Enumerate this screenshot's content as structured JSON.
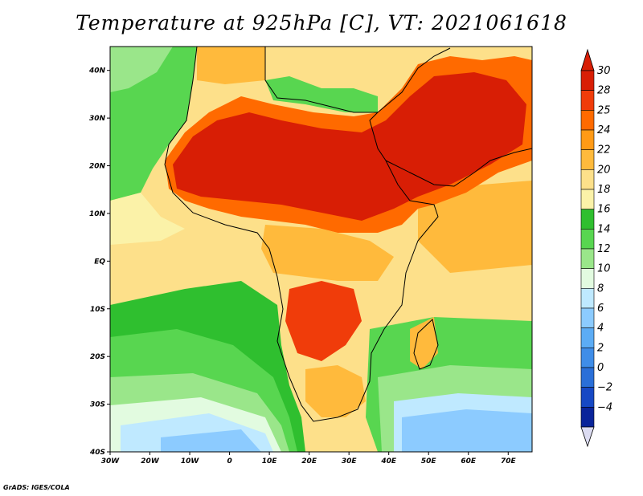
{
  "title": "Temperature at 925hPa [C], VT: 2021061618",
  "credit": "GrADS: IGES/COLA",
  "map": {
    "lon_range": [
      -30,
      76
    ],
    "lat_range": [
      -40,
      45
    ],
    "x_ticks": [
      "30W",
      "20W",
      "10W",
      "0",
      "10E",
      "20E",
      "30E",
      "40E",
      "50E",
      "60E",
      "70E"
    ],
    "y_ticks": [
      "40S",
      "30S",
      "20S",
      "10S",
      "EQ",
      "10N",
      "20N",
      "30N",
      "40N"
    ],
    "variable": "Temperature at 925hPa",
    "units": "C"
  },
  "colorbar": {
    "labels": [
      "30",
      "28",
      "25",
      "24",
      "22",
      "20",
      "18",
      "16",
      "14",
      "12",
      "10",
      "8",
      "6",
      "4",
      "2",
      "0",
      "-2",
      "-4"
    ],
    "colors": [
      "#d81e05",
      "#f03c0a",
      "#ff6a00",
      "#ff9a16",
      "#ffba3c",
      "#fde08a",
      "#fbf2a8",
      "#2fbf2f",
      "#58d650",
      "#9ae68a",
      "#e2fbe0",
      "#bfe9ff",
      "#8ccbff",
      "#5cacf5",
      "#3f8de8",
      "#2a6fd8",
      "#1648c4",
      "#0a249a"
    ],
    "top_color": "#d81e05",
    "bottom_color": "#dcdcf2"
  }
}
